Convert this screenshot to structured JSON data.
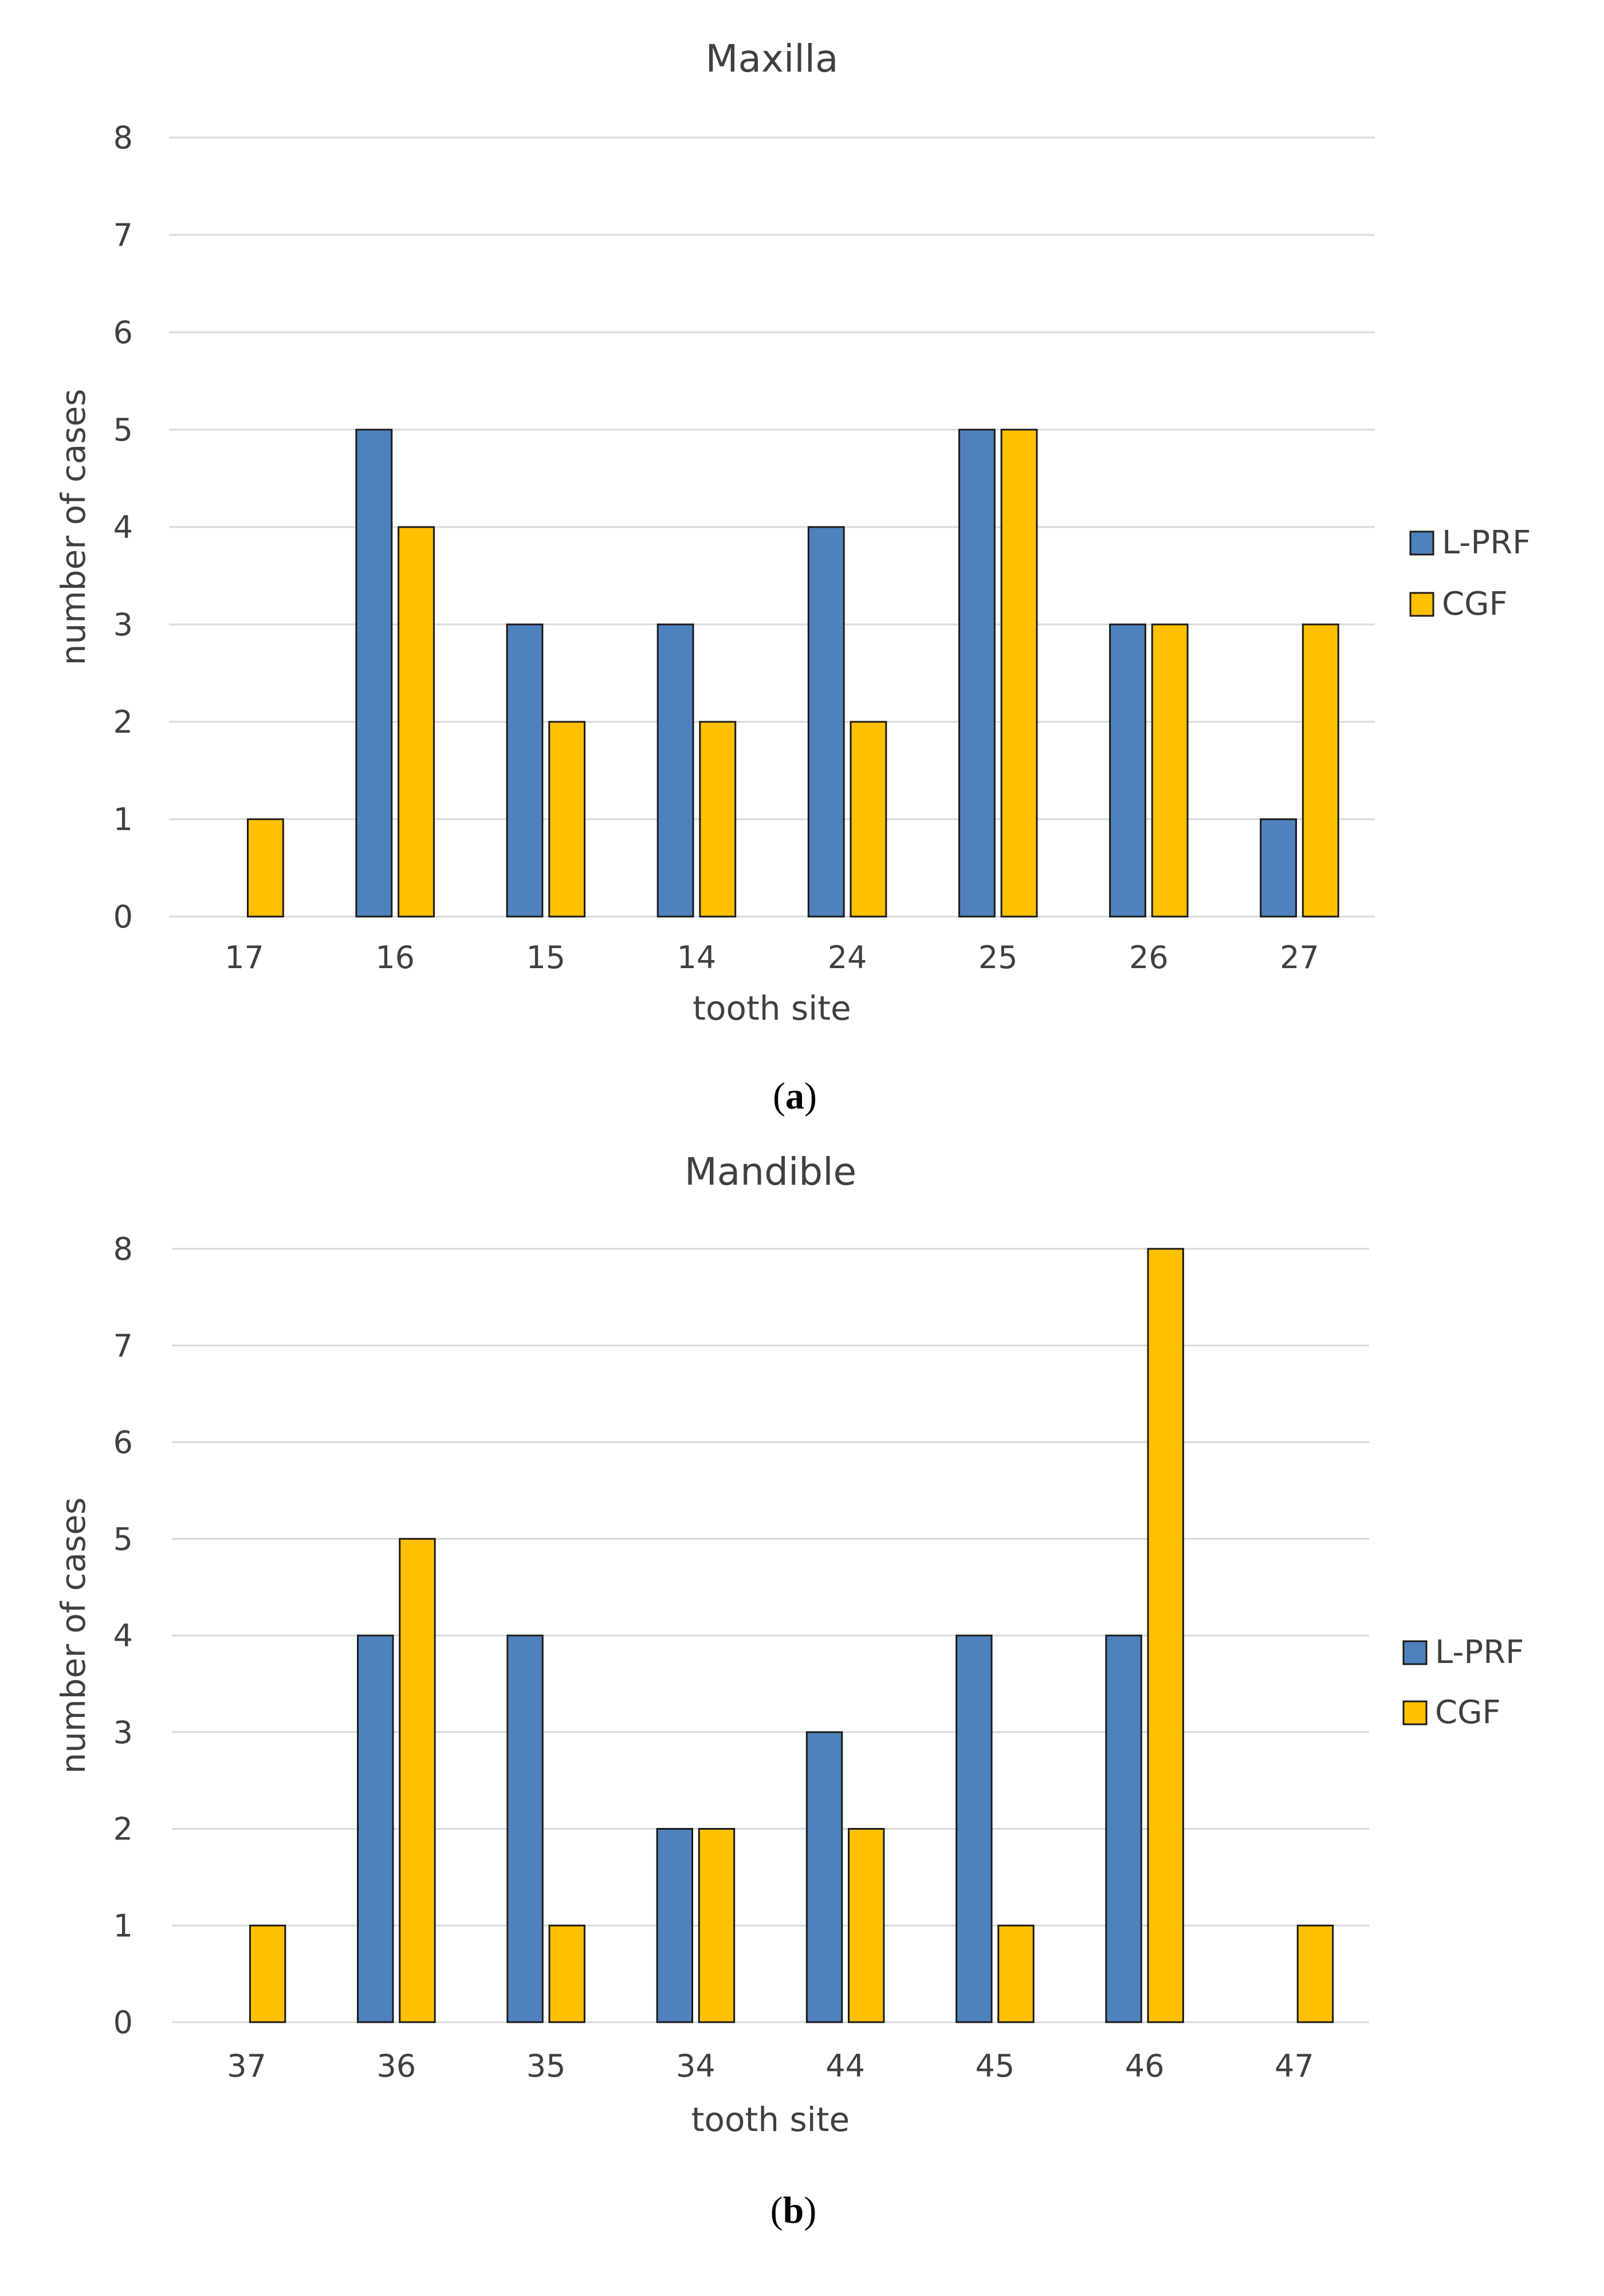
{
  "colors": {
    "L-PRF": "#4f81bd",
    "CGF": "#ffc000",
    "grid": "#d9d9d9",
    "text": "#404040"
  },
  "chart_data": [
    {
      "type": "bar",
      "title": "Maxilla",
      "panel_label": "a",
      "xlabel": "tooth site",
      "ylabel": "number of cases",
      "ylim": [
        0,
        8
      ],
      "yticks": [
        0,
        1,
        2,
        3,
        4,
        5,
        6,
        7,
        8
      ],
      "grid": true,
      "legend": "right",
      "categories": [
        "17",
        "16",
        "15",
        "14",
        "24",
        "25",
        "26",
        "27"
      ],
      "series": [
        {
          "name": "L-PRF",
          "values": [
            0,
            5,
            3,
            3,
            4,
            5,
            3,
            1
          ]
        },
        {
          "name": "CGF",
          "values": [
            1,
            4,
            2,
            2,
            2,
            5,
            3,
            3
          ]
        }
      ]
    },
    {
      "type": "bar",
      "title": "Mandible",
      "panel_label": "b",
      "xlabel": "tooth site",
      "ylabel": "number of cases",
      "ylim": [
        0,
        8
      ],
      "yticks": [
        0,
        1,
        2,
        3,
        4,
        5,
        6,
        7,
        8
      ],
      "grid": true,
      "legend": "right",
      "categories": [
        "37",
        "36",
        "35",
        "34",
        "44",
        "45",
        "46",
        "47"
      ],
      "series": [
        {
          "name": "L-PRF",
          "values": [
            0,
            4,
            4,
            2,
            3,
            4,
            4,
            0
          ]
        },
        {
          "name": "CGF",
          "values": [
            1,
            5,
            1,
            2,
            2,
            1,
            8,
            1
          ]
        }
      ]
    }
  ]
}
